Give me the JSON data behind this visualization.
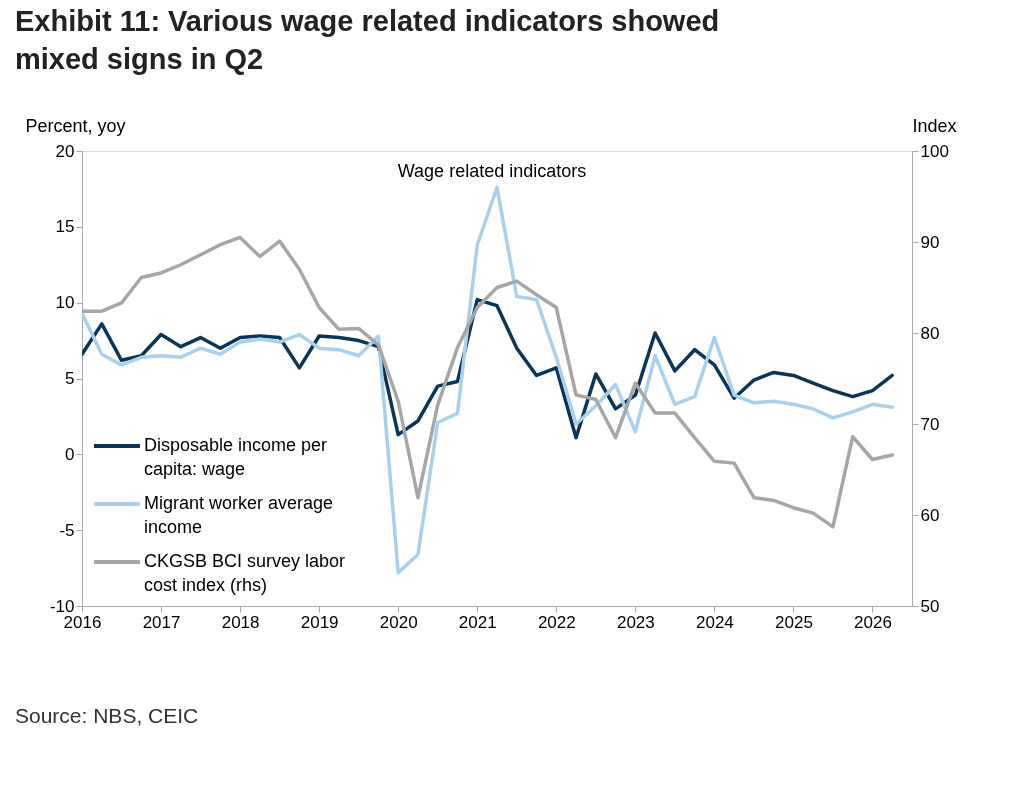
{
  "chart_data": {
    "type": "line",
    "title": "Exhibit 11: Various wage related indicators showed mixed signs in Q2",
    "subtitle": "Wage related indicators",
    "ylabel": "Percent, yoy",
    "y2label": "Index",
    "annotations": [
      "Source: NBS, CEIC"
    ],
    "x": [
      2016,
      2016.25,
      2016.5,
      2016.75,
      2017,
      2017.25,
      2017.5,
      2017.75,
      2018,
      2018.25,
      2018.5,
      2018.75,
      2019,
      2019.25,
      2019.5,
      2019.75,
      2020,
      2020.25,
      2020.5,
      2020.75,
      2021,
      2021.25,
      2021.5,
      2021.75,
      2022,
      2022.25,
      2022.5,
      2022.75,
      2023,
      2023.25,
      2023.5,
      2023.75,
      2024,
      2024.25,
      2024.5,
      2024.75,
      2025,
      2025.25,
      2025.5,
      2025.75,
      2026,
      2026.25
    ],
    "xlim": [
      2016,
      2026.5
    ],
    "xticks": [
      2016,
      2017,
      2018,
      2019,
      2020,
      2021,
      2022,
      2023,
      2024,
      2025,
      2026
    ],
    "ylim": [
      -10,
      20
    ],
    "yticks": [
      -10,
      -5,
      0,
      5,
      10,
      15,
      20
    ],
    "y2lim": [
      50,
      100
    ],
    "y2ticks": [
      50,
      60,
      70,
      80,
      90,
      100
    ],
    "grid": false,
    "legend": "bottom left",
    "marker": "none",
    "line_style": "solid",
    "series": [
      {
        "name": "Disposable income per capita: wage",
        "color": "#0b3558",
        "values": [
          6.6,
          8.6,
          6.2,
          6.5,
          7.9,
          7.1,
          7.7,
          7.0,
          7.7,
          7.8,
          7.7,
          5.7,
          7.8,
          7.7,
          7.5,
          7.1,
          1.3,
          2.2,
          4.5,
          4.8,
          10.2,
          9.8,
          7.0,
          5.2,
          5.7,
          1.1,
          5.3,
          3.0,
          3.9,
          8.0,
          5.5,
          6.9,
          5.9,
          3.7,
          4.9,
          5.4,
          5.2,
          4.7,
          4.2,
          3.8,
          4.2,
          5.2
        ]
      },
      {
        "name": "Migrant worker average income",
        "color": "#a9d0ee",
        "values": [
          9.3,
          6.6,
          5.9,
          6.4,
          6.5,
          6.4,
          7.0,
          6.6,
          7.4,
          7.6,
          7.4,
          7.9,
          7.0,
          6.9,
          6.5,
          7.8,
          -7.8,
          -6.6,
          2.1,
          2.7,
          13.8,
          17.6,
          10.4,
          10.2,
          6.4,
          2.0,
          3.2,
          4.6,
          1.5,
          6.5,
          3.3,
          3.8,
          7.7,
          3.9,
          3.4,
          3.5,
          3.3,
          3.0,
          2.4,
          2.8,
          3.3,
          3.1
        ]
      },
      {
        "name": "CKGSB BCI survey labor cost index (rhs)",
        "color": "#a6a6a6",
        "axis": "y2",
        "values": [
          82.4,
          82.4,
          83.3,
          86.1,
          86.6,
          87.5,
          88.6,
          89.7,
          90.5,
          88.4,
          90.1,
          87.0,
          82.8,
          80.4,
          80.5,
          78.7,
          72.5,
          61.9,
          72.1,
          78.4,
          82.8,
          85.0,
          85.7,
          84.2,
          82.8,
          73.2,
          72.7,
          68.5,
          74.5,
          71.2,
          71.2,
          68.5,
          65.9,
          65.7,
          61.9,
          61.6,
          60.8,
          60.2,
          58.7,
          68.6,
          66.1,
          66.6
        ]
      }
    ]
  }
}
